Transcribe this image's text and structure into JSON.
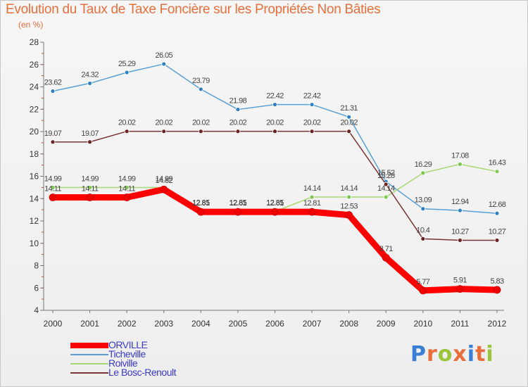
{
  "header": {
    "title": "Evolution du Taux de Taxe Foncière sur les Propriétés Non Bâties",
    "subtitle": "(en %)"
  },
  "logo": {
    "text": "Proxiti",
    "colors": [
      "#3a7ed6",
      "#e86f3c",
      "#9ac43a",
      "#e86f3c",
      "#3a7ed6",
      "#e86f3c",
      "#9ac43a"
    ]
  },
  "chart_data": {
    "type": "line",
    "title": "Evolution du Taux de Taxe Foncière sur les Propriétés Non Bâties",
    "subtitle": "(en %)",
    "xlabel": "",
    "ylabel": "",
    "x": [
      "2000",
      "2001",
      "2002",
      "2003",
      "2004",
      "2005",
      "2006",
      "2007",
      "2008",
      "2009",
      "2010",
      "2011",
      "2012"
    ],
    "ylim": [
      4,
      28
    ],
    "yticks": [
      4,
      6,
      8,
      10,
      12,
      14,
      16,
      18,
      20,
      22,
      24,
      26,
      28
    ],
    "grid": false,
    "legend_position": "bottom-left",
    "series": [
      {
        "name": "Ticheville",
        "color": "#5a9fd4",
        "marker": "#2f7fc4",
        "width": 1.5,
        "values": [
          23.62,
          24.32,
          25.29,
          26.05,
          23.79,
          21.98,
          22.42,
          22.42,
          21.31,
          15.52,
          13.09,
          12.94,
          12.68
        ],
        "labels": [
          "23.62",
          "24.32",
          "25.29",
          "26.05",
          "23.79",
          "21.98",
          "22.42",
          "22.42",
          "21.31",
          "15.52",
          "13.09",
          "12.94",
          "12.68"
        ]
      },
      {
        "name": "Roiville",
        "color": "#a6d874",
        "marker": "#7ec850",
        "width": 1.5,
        "values": [
          14.99,
          14.99,
          14.99,
          14.99,
          12.85,
          12.85,
          12.85,
          14.14,
          14.14,
          14.14,
          16.29,
          17.08,
          16.43
        ],
        "labels": [
          "14.99",
          "14.99",
          "14.99",
          "14.99",
          "12.85",
          "12.85",
          "12.85",
          "14.14",
          "14.14",
          "14.14",
          "16.29",
          "17.08",
          "16.43"
        ]
      },
      {
        "name": "Le Bosc-Renoult",
        "color": "#7a3434",
        "marker": "#6a2424",
        "width": 1.5,
        "values": [
          19.07,
          19.07,
          20.02,
          20.02,
          20.02,
          20.02,
          20.02,
          20.02,
          20.02,
          15.28,
          10.4,
          10.27,
          10.27
        ],
        "labels": [
          "19.07",
          "19.07",
          "20.02",
          "20.02",
          "20.02",
          "20.02",
          "20.02",
          "20.02",
          "20.02",
          "15.28",
          "10.4",
          "10.27",
          "10.27"
        ]
      },
      {
        "name": "ORVILLE",
        "color": "#ff0000",
        "marker": "#ee0000",
        "width": 9,
        "values": [
          14.11,
          14.11,
          14.11,
          14.82,
          12.81,
          12.81,
          12.81,
          12.81,
          12.53,
          8.71,
          5.77,
          5.91,
          5.83
        ],
        "labels": [
          "14.11",
          "14.11",
          "14.11",
          "14.82",
          "12.81",
          "12.81",
          "12.81",
          "12.81",
          "12.53",
          "8.71",
          "5.77",
          "5.91",
          "5.83"
        ]
      }
    ],
    "legend_order": [
      "ORVILLE",
      "Ticheville",
      "Roiville",
      "Le Bosc-Renoult"
    ]
  }
}
